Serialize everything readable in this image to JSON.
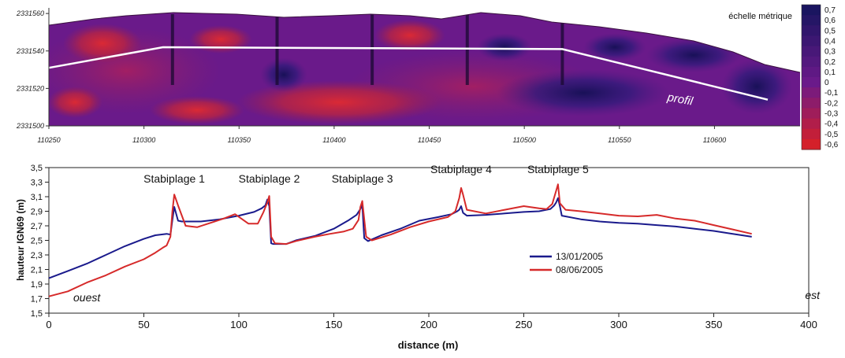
{
  "colors": {
    "red": "#d4202a",
    "purple_mid": "#6a1a8a",
    "navy": "#1a1560",
    "profile_red": "#d62a2a",
    "profile_blue": "#1a1a8c"
  },
  "chart_data": [
    {
      "type": "heatmap",
      "title": "",
      "scale_title": "échelle métrique",
      "profile_label": "profil",
      "xlim": [
        110250,
        110645
      ],
      "ylim": [
        2331500,
        2331563
      ],
      "x_ticks": [
        "110250",
        "110300",
        "110350",
        "110400",
        "110450",
        "110500",
        "110550",
        "110600"
      ],
      "y_ticks": [
        "2331500",
        "2331520",
        "2331540",
        "2331560"
      ],
      "colorbar_labels": [
        "0,7",
        "0,6",
        "0,5",
        "0,4",
        "0,3",
        "0,2",
        "0,1",
        "0",
        "-0,1",
        "-0,2",
        "-0,3",
        "-0,4",
        "-0,5",
        "-0,6"
      ],
      "colorbar_values": [
        0.7,
        0.6,
        0.5,
        0.4,
        0.3,
        0.2,
        0.1,
        0,
        -0.1,
        -0.2,
        -0.3,
        -0.4,
        -0.5,
        -0.6
      ],
      "profile_line": {
        "x": [
          110250,
          110310,
          110520,
          110628
        ],
        "y": [
          2331531,
          2331542,
          2331541,
          2331514
        ]
      },
      "structures_x": [
        110315,
        110370,
        110420,
        110470,
        110520
      ]
    },
    {
      "type": "line",
      "title": "",
      "xlabel": "distance (m)",
      "ylabel": "hauteur IGN69 (m)",
      "xlim": [
        0,
        400
      ],
      "ylim": [
        1.5,
        3.5
      ],
      "x_ticks": [
        "0",
        "50",
        "100",
        "150",
        "200",
        "250",
        "300",
        "350",
        "400"
      ],
      "y_ticks": [
        "1,5",
        "1,7",
        "1,9",
        "2,1",
        "2,3",
        "2,5",
        "2,7",
        "2,9",
        "3,1",
        "3,3",
        "3,5"
      ],
      "annotations": [
        {
          "text": "Stabiplage 1",
          "x": 66
        },
        {
          "text": "Stabiplage 2",
          "x": 116
        },
        {
          "text": "Stabiplage 3",
          "x": 165
        },
        {
          "text": "Stabiplage 4",
          "x": 217
        },
        {
          "text": "Stabiplage 5",
          "x": 268
        }
      ],
      "corner_labels": {
        "left": "ouest",
        "right": "est"
      },
      "legend_position": "center-right",
      "series": [
        {
          "name": "13/01/2005",
          "color": "#1a1a8c",
          "x": [
            0,
            10,
            20,
            30,
            40,
            50,
            56,
            62,
            64,
            65,
            66,
            68,
            70,
            80,
            90,
            100,
            108,
            112,
            114,
            115,
            116,
            117,
            118,
            125,
            130,
            140,
            150,
            158,
            162,
            164,
            165,
            166,
            168,
            175,
            185,
            195,
            205,
            212,
            215,
            216,
            217,
            218,
            220,
            230,
            240,
            250,
            258,
            264,
            266,
            267,
            268,
            269,
            270,
            280,
            290,
            300,
            310,
            320,
            330,
            340,
            350,
            360,
            370
          ],
          "y": [
            1.98,
            2.08,
            2.18,
            2.3,
            2.42,
            2.52,
            2.57,
            2.59,
            2.58,
            2.78,
            2.96,
            2.77,
            2.76,
            2.76,
            2.79,
            2.84,
            2.89,
            2.94,
            2.98,
            3.06,
            2.97,
            2.46,
            2.45,
            2.45,
            2.5,
            2.56,
            2.66,
            2.78,
            2.85,
            2.93,
            2.99,
            2.53,
            2.49,
            2.57,
            2.66,
            2.77,
            2.82,
            2.86,
            2.9,
            2.92,
            2.97,
            2.88,
            2.84,
            2.85,
            2.87,
            2.89,
            2.9,
            2.93,
            2.98,
            3.02,
            3.08,
            2.97,
            2.84,
            2.79,
            2.76,
            2.74,
            2.73,
            2.71,
            2.69,
            2.66,
            2.63,
            2.59,
            2.55
          ]
        },
        {
          "name": "08/06/2005",
          "color": "#d62a2a",
          "x": [
            0,
            10,
            20,
            30,
            40,
            50,
            56,
            60,
            62,
            64,
            65,
            66,
            68,
            72,
            78,
            85,
            92,
            98,
            105,
            110,
            113,
            115,
            116,
            117,
            119,
            125,
            130,
            140,
            148,
            155,
            160,
            163,
            164,
            165,
            167,
            170,
            180,
            190,
            200,
            210,
            214,
            216,
            217,
            218,
            220,
            230,
            240,
            250,
            258,
            262,
            265,
            267,
            268,
            269,
            272,
            280,
            290,
            300,
            310,
            320,
            330,
            340,
            350,
            360,
            370
          ],
          "y": [
            1.73,
            1.8,
            1.92,
            2.02,
            2.14,
            2.24,
            2.33,
            2.4,
            2.43,
            2.55,
            2.9,
            3.13,
            2.98,
            2.7,
            2.68,
            2.74,
            2.8,
            2.86,
            2.73,
            2.73,
            2.89,
            3.02,
            3.11,
            2.55,
            2.46,
            2.45,
            2.49,
            2.55,
            2.59,
            2.62,
            2.66,
            2.78,
            2.96,
            3.04,
            2.55,
            2.5,
            2.58,
            2.68,
            2.76,
            2.82,
            2.9,
            3.08,
            3.22,
            3.13,
            2.92,
            2.87,
            2.92,
            2.97,
            2.94,
            2.93,
            3.0,
            3.18,
            3.27,
            3.01,
            2.92,
            2.9,
            2.87,
            2.84,
            2.83,
            2.85,
            2.8,
            2.77,
            2.71,
            2.65,
            2.59
          ]
        }
      ]
    }
  ]
}
